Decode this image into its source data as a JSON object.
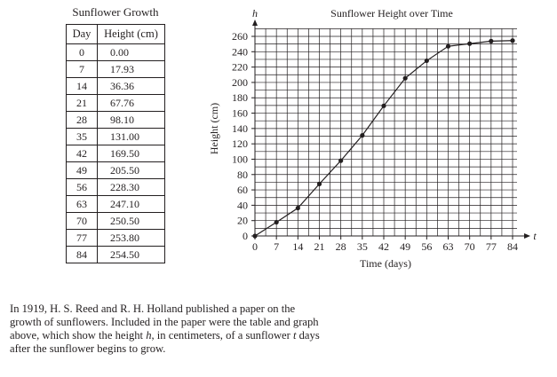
{
  "table": {
    "title": "Sunflower Growth",
    "headers": [
      "Day",
      "Height (cm)"
    ],
    "rows": [
      [
        "0",
        "0.00"
      ],
      [
        "7",
        "17.93"
      ],
      [
        "14",
        "36.36"
      ],
      [
        "21",
        "67.76"
      ],
      [
        "28",
        "98.10"
      ],
      [
        "35",
        "131.00"
      ],
      [
        "42",
        "169.50"
      ],
      [
        "49",
        "205.50"
      ],
      [
        "56",
        "228.30"
      ],
      [
        "63",
        "247.10"
      ],
      [
        "70",
        "250.50"
      ],
      [
        "77",
        "253.80"
      ],
      [
        "84",
        "254.50"
      ]
    ]
  },
  "chart_data": {
    "type": "line",
    "title": "Sunflower Height over Time",
    "xlabel": "Time (days)",
    "ylabel": "Height (cm)",
    "x_axis_letter": "t",
    "y_axis_letter": "h",
    "x": [
      0,
      7,
      14,
      21,
      28,
      35,
      42,
      49,
      56,
      63,
      70,
      77,
      84
    ],
    "y": [
      0,
      17.93,
      36.36,
      67.76,
      98.1,
      131.0,
      169.5,
      205.5,
      228.3,
      247.1,
      250.5,
      253.8,
      254.5
    ],
    "xticks": [
      "0",
      "7",
      "14",
      "21",
      "28",
      "35",
      "42",
      "49",
      "56",
      "63",
      "70",
      "77",
      "84"
    ],
    "yticks": [
      "0",
      "20",
      "40",
      "60",
      "80",
      "100",
      "120",
      "140",
      "160",
      "180",
      "200",
      "220",
      "240",
      "260"
    ],
    "xlim": [
      0,
      84
    ],
    "ylim": [
      0,
      260
    ],
    "grid": true
  },
  "paragraph": {
    "line1": "In 1919, H. S. Reed and R. H. Holland published a paper on the",
    "line2_a": "growth of sunflowers. Included in the paper were the table and graph",
    "line3_a": "above, which show the height ",
    "line3_h": "h",
    "line3_b": ", in centimeters, of a sunflower ",
    "line3_t": "t",
    "line3_c": " days",
    "line4": "after the sunflower begins to grow."
  }
}
